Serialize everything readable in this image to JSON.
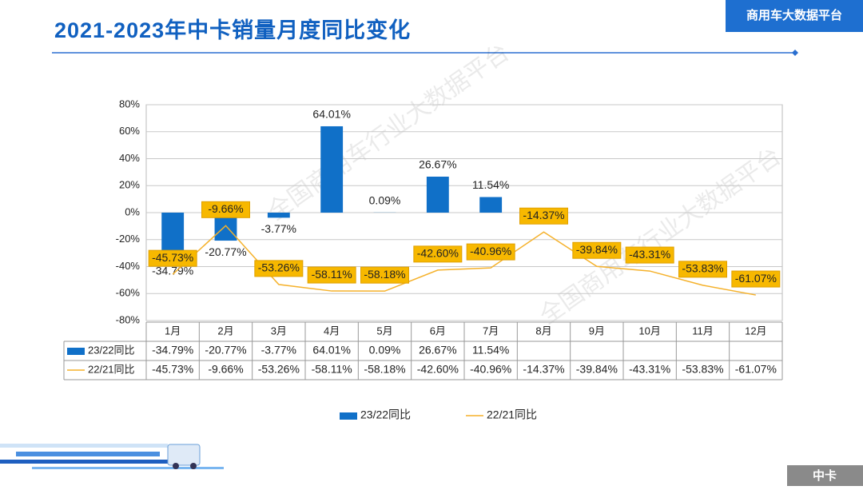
{
  "header": {
    "title": "2021-2023年中卡销量月度同比变化",
    "badge": "商用车大数据平台",
    "footer": "中卡",
    "watermark": "全国商用车行业大数据平台"
  },
  "chart_data": {
    "type": "bar-line",
    "categories": [
      "1月",
      "2月",
      "3月",
      "4月",
      "5月",
      "6月",
      "7月",
      "8月",
      "9月",
      "10月",
      "11月",
      "12月"
    ],
    "series": [
      {
        "name": "23/22同比",
        "type": "bar",
        "color": "#1070c8",
        "values": [
          -34.79,
          -20.77,
          -3.77,
          64.01,
          0.09,
          26.67,
          11.54,
          null,
          null,
          null,
          null,
          null
        ],
        "value_labels": [
          "-34.79%",
          "-20.77%",
          "-3.77%",
          "64.01%",
          "0.09%",
          "26.67%",
          "11.54%",
          null,
          null,
          null,
          null,
          null
        ]
      },
      {
        "name": "22/21同比",
        "type": "line",
        "color": "#f5b12a",
        "values": [
          -45.73,
          -9.66,
          -53.26,
          -58.11,
          -58.18,
          -42.6,
          -40.96,
          -14.37,
          -39.84,
          -43.31,
          -53.83,
          -61.07
        ],
        "value_labels": [
          "-45.73%",
          "-9.66%",
          "-53.26%",
          "-58.11%",
          "-58.18%",
          "-42.60%",
          "-40.96%",
          "-14.37%",
          "-39.84%",
          "-43.31%",
          "-53.83%",
          "-61.07%"
        ]
      }
    ],
    "ylim": [
      -80,
      80
    ],
    "yticks": [
      {
        "value": -80,
        "label": "-80%"
      },
      {
        "value": -60,
        "label": "-60%"
      },
      {
        "value": -40,
        "label": "-40%"
      },
      {
        "value": -20,
        "label": "-20%"
      },
      {
        "value": 0,
        "label": "0%"
      },
      {
        "value": 20,
        "label": "20%"
      },
      {
        "value": 40,
        "label": "40%"
      },
      {
        "value": 60,
        "label": "60%"
      },
      {
        "value": 80,
        "label": "80%"
      }
    ],
    "grid": true
  }
}
